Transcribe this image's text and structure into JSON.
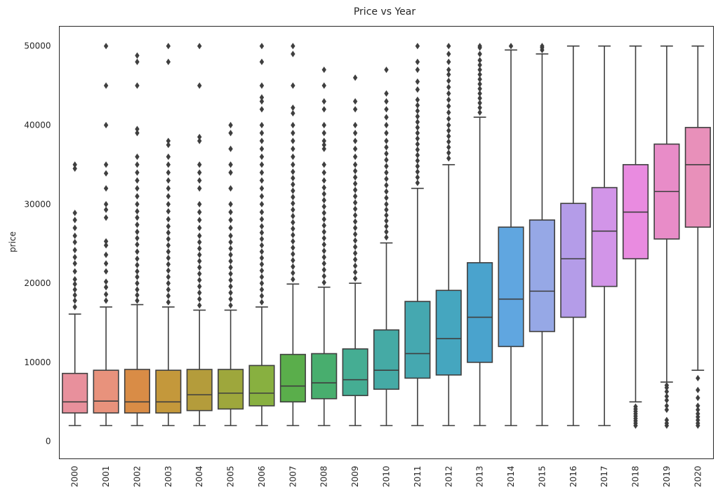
{
  "chart_data": {
    "type": "box",
    "title": "Price vs Year",
    "xlabel": "",
    "ylabel": "price",
    "ylim": [
      -2200,
      52500
    ],
    "yticks": [
      0,
      10000,
      20000,
      30000,
      40000,
      50000
    ],
    "grid": false,
    "legend": "none",
    "categories": [
      "2000",
      "2001",
      "2002",
      "2003",
      "2004",
      "2005",
      "2006",
      "2007",
      "2008",
      "2009",
      "2010",
      "2011",
      "2012",
      "2013",
      "2014",
      "2015",
      "2016",
      "2017",
      "2018",
      "2019",
      "2020"
    ],
    "boxes": [
      {
        "year": "2000",
        "color": "#e8909c",
        "whislo": 2000,
        "q1": 3600,
        "med": 5000,
        "q3": 8600,
        "whishi": 16100,
        "fliers": [
          17000,
          17800,
          18500,
          19200,
          19900,
          20500,
          21500,
          22500,
          23300,
          24200,
          25200,
          26000,
          27000,
          28000,
          28900,
          34500,
          35000
        ]
      },
      {
        "year": "2001",
        "color": "#e8927c",
        "whislo": 2000,
        "q1": 3600,
        "med": 5100,
        "q3": 9000,
        "whishi": 17000,
        "fliers": [
          17800,
          18600,
          19500,
          20200,
          21500,
          22500,
          23600,
          24800,
          25300,
          28300,
          29300,
          30000,
          32000,
          33900,
          35000,
          40000,
          45000,
          50000
        ]
      },
      {
        "year": "2002",
        "color": "#d98c46",
        "whislo": 2000,
        "q1": 3600,
        "med": 5000,
        "q3": 9100,
        "whishi": 17300,
        "fliers": [
          17800,
          18500,
          19200,
          20000,
          20800,
          21500,
          22300,
          23100,
          24000,
          24900,
          25700,
          26500,
          27400,
          28300,
          29100,
          30000,
          31000,
          32000,
          33000,
          34000,
          35000,
          36000,
          39000,
          39500,
          45000,
          48000,
          48800
        ]
      },
      {
        "year": "2003",
        "color": "#c4983b",
        "whislo": 2000,
        "q1": 3600,
        "med": 5000,
        "q3": 9000,
        "whishi": 17000,
        "fliers": [
          17600,
          18400,
          19200,
          20000,
          20800,
          21600,
          22400,
          23200,
          24000,
          24800,
          25600,
          26400,
          27200,
          28100,
          29100,
          30000,
          31000,
          32000,
          33000,
          34000,
          35000,
          36000,
          37500,
          38000,
          48000,
          50000
        ]
      },
      {
        "year": "2004",
        "color": "#b49c3b",
        "whislo": 2000,
        "q1": 3900,
        "med": 5900,
        "q3": 9100,
        "whishi": 16600,
        "fliers": [
          17200,
          18000,
          18800,
          19600,
          20400,
          21200,
          22000,
          22800,
          23600,
          24400,
          25200,
          26000,
          27000,
          28000,
          29000,
          30000,
          32000,
          33000,
          34000,
          35000,
          38000,
          38500,
          45000,
          50000
        ]
      },
      {
        "year": "2005",
        "color": "#9ea73c",
        "whislo": 2000,
        "q1": 4100,
        "med": 6100,
        "q3": 9100,
        "whishi": 16600,
        "fliers": [
          17200,
          18000,
          18800,
          19600,
          20400,
          21200,
          22000,
          22800,
          23600,
          24400,
          25200,
          26000,
          27000,
          28000,
          29000,
          30000,
          32000,
          34000,
          35000,
          37000,
          39000,
          40000
        ]
      },
      {
        "year": "2006",
        "color": "#88b040",
        "whislo": 2000,
        "q1": 4500,
        "med": 6100,
        "q3": 9600,
        "whishi": 17000,
        "fliers": [
          17600,
          18400,
          19200,
          20000,
          20800,
          21600,
          22400,
          23200,
          24000,
          24800,
          25600,
          26400,
          27200,
          28100,
          29000,
          30000,
          31000,
          32000,
          33000,
          34000,
          35000,
          36000,
          37000,
          38000,
          39000,
          40000,
          42000,
          43000,
          43500,
          45000,
          48000,
          50000
        ]
      },
      {
        "year": "2007",
        "color": "#5aae4b",
        "whislo": 2000,
        "q1": 5000,
        "med": 7000,
        "q3": 11000,
        "whishi": 19900,
        "fliers": [
          20500,
          21300,
          22100,
          22900,
          23700,
          24500,
          25300,
          26100,
          26900,
          27700,
          28500,
          29300,
          30100,
          30900,
          31700,
          32500,
          33300,
          34100,
          35000,
          36000,
          37000,
          38000,
          39000,
          40000,
          41500,
          42200,
          45000,
          49000,
          50000
        ]
      },
      {
        "year": "2008",
        "color": "#48ae6e",
        "whislo": 2000,
        "q1": 5400,
        "med": 7400,
        "q3": 11100,
        "whishi": 19500,
        "fliers": [
          20100,
          20900,
          21700,
          22500,
          23300,
          24100,
          24900,
          25700,
          26500,
          27300,
          28100,
          28900,
          29700,
          30500,
          31300,
          32100,
          33000,
          34000,
          35000,
          37000,
          37500,
          38000,
          39000,
          40000,
          42000,
          43000,
          45000,
          47000
        ]
      },
      {
        "year": "2009",
        "color": "#45ad93",
        "whislo": 2000,
        "q1": 5800,
        "med": 7800,
        "q3": 11700,
        "whishi": 20000,
        "fliers": [
          20600,
          21400,
          22200,
          23000,
          23800,
          24600,
          25400,
          26200,
          27000,
          27800,
          28600,
          29400,
          30200,
          31000,
          31800,
          32600,
          33400,
          34200,
          35000,
          36000,
          37000,
          38000,
          39000,
          40000,
          42000,
          43000,
          46000
        ]
      },
      {
        "year": "2010",
        "color": "#45aaa5",
        "whislo": 2000,
        "q1": 6600,
        "med": 9000,
        "q3": 14100,
        "whishi": 25100,
        "fliers": [
          25800,
          26500,
          27200,
          27900,
          28600,
          29300,
          30000,
          30800,
          31600,
          32400,
          33200,
          34000,
          34800,
          35600,
          36400,
          37200,
          38000,
          39000,
          40000,
          41000,
          42000,
          43000,
          44000,
          47000
        ]
      },
      {
        "year": "2011",
        "color": "#45a8b0",
        "whislo": 2000,
        "q1": 8000,
        "med": 11100,
        "q3": 17700,
        "whishi": 32000,
        "fliers": [
          32700,
          33400,
          34100,
          34800,
          35500,
          36200,
          36900,
          37600,
          38300,
          39000,
          39700,
          40400,
          41100,
          41800,
          42500,
          43200,
          44500,
          45500,
          47000,
          48000,
          50000
        ]
      },
      {
        "year": "2012",
        "color": "#45a6bf",
        "whislo": 2000,
        "q1": 8400,
        "med": 13000,
        "q3": 19100,
        "whishi": 35000,
        "fliers": [
          35800,
          36500,
          37200,
          37900,
          38600,
          39300,
          40000,
          40800,
          41600,
          42400,
          43200,
          44000,
          44800,
          45600,
          46400,
          47000,
          48000,
          49000,
          50000
        ]
      },
      {
        "year": "2013",
        "color": "#4aa3cd",
        "whislo": 2000,
        "q1": 10000,
        "med": 15700,
        "q3": 22600,
        "whishi": 41000,
        "fliers": [
          41600,
          42200,
          42800,
          43400,
          44000,
          44600,
          45200,
          45800,
          46400,
          47000,
          47600,
          48200,
          49000,
          49800,
          50000
        ]
      },
      {
        "year": "2014",
        "color": "#60a6e0",
        "whislo": 2000,
        "q1": 12000,
        "med": 18000,
        "q3": 27100,
        "whishi": 49500,
        "fliers": [
          50000
        ]
      },
      {
        "year": "2015",
        "color": "#96a8e6",
        "whislo": 2000,
        "q1": 13900,
        "med": 19000,
        "q3": 28000,
        "whishi": 49000,
        "fliers": [
          49500,
          49800,
          50000
        ]
      },
      {
        "year": "2016",
        "color": "#b49ce8",
        "whislo": 2000,
        "q1": 15700,
        "med": 23100,
        "q3": 30100,
        "whishi": 50000,
        "fliers": []
      },
      {
        "year": "2017",
        "color": "#d295e8",
        "whislo": 2000,
        "q1": 19600,
        "med": 26600,
        "q3": 32100,
        "whishi": 50000,
        "fliers": []
      },
      {
        "year": "2018",
        "color": "#e98be0",
        "whislo": 5000,
        "q1": 23100,
        "med": 29000,
        "q3": 35000,
        "whishi": 50000,
        "fliers": [
          2000,
          2300,
          2600,
          2900,
          3200,
          3500,
          3800,
          4100,
          4400
        ]
      },
      {
        "year": "2019",
        "color": "#e88cc8",
        "whislo": 7500,
        "q1": 25600,
        "med": 31600,
        "q3": 37600,
        "whishi": 50000,
        "fliers": [
          2000,
          2300,
          2700,
          4000,
          4500,
          5200,
          5700,
          6300,
          6800,
          7100
        ]
      },
      {
        "year": "2020",
        "color": "#e890ba",
        "whislo": 9000,
        "q1": 27100,
        "med": 35000,
        "q3": 39700,
        "whishi": 50000,
        "fliers": [
          2000,
          2300,
          2700,
          3100,
          3500,
          4000,
          4500,
          5500,
          6500,
          8000
        ]
      }
    ]
  }
}
